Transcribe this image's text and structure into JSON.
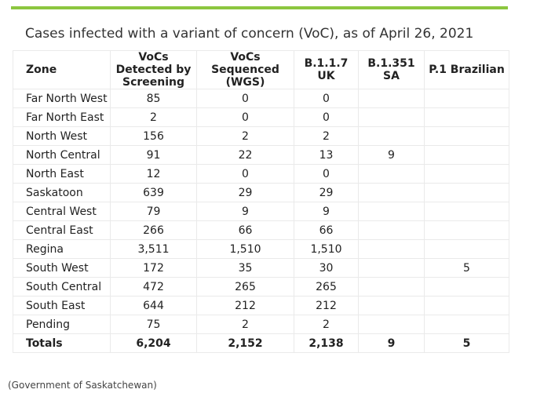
{
  "title": "Cases infected with a variant of concern (VoC), as of April 26, 2021",
  "source": "(Government of Saskatchewan)",
  "accent_color": "#8cc63f",
  "headers": [
    "Zone",
    "VoCs Detected by Screening",
    "VoCs Sequenced (WGS)",
    "B.1.1.7 UK",
    "B.1.351 SA",
    "P.1 Brazilian"
  ],
  "rows": [
    [
      "Far North West",
      "85",
      "0",
      "0",
      "",
      ""
    ],
    [
      "Far North East",
      "2",
      "0",
      "0",
      "",
      ""
    ],
    [
      "North West",
      "156",
      "2",
      "2",
      "",
      ""
    ],
    [
      "North Central",
      "91",
      "22",
      "13",
      "9",
      ""
    ],
    [
      "North East",
      "12",
      "0",
      "0",
      "",
      ""
    ],
    [
      "Saskatoon",
      "639",
      "29",
      "29",
      "",
      ""
    ],
    [
      "Central West",
      "79",
      "9",
      "9",
      "",
      ""
    ],
    [
      "Central East",
      "266",
      "66",
      "66",
      "",
      ""
    ],
    [
      "Regina",
      "3,511",
      "1,510",
      "1,510",
      "",
      ""
    ],
    [
      "South West",
      "172",
      "35",
      "30",
      "",
      "5"
    ],
    [
      "South Central",
      "472",
      "265",
      "265",
      "",
      ""
    ],
    [
      "South East",
      "644",
      "212",
      "212",
      "",
      ""
    ],
    [
      "Pending",
      "75",
      "2",
      "2",
      "",
      ""
    ]
  ],
  "totals": [
    "Totals",
    "6,204",
    "2,152",
    "2,138",
    "9",
    "5"
  ]
}
